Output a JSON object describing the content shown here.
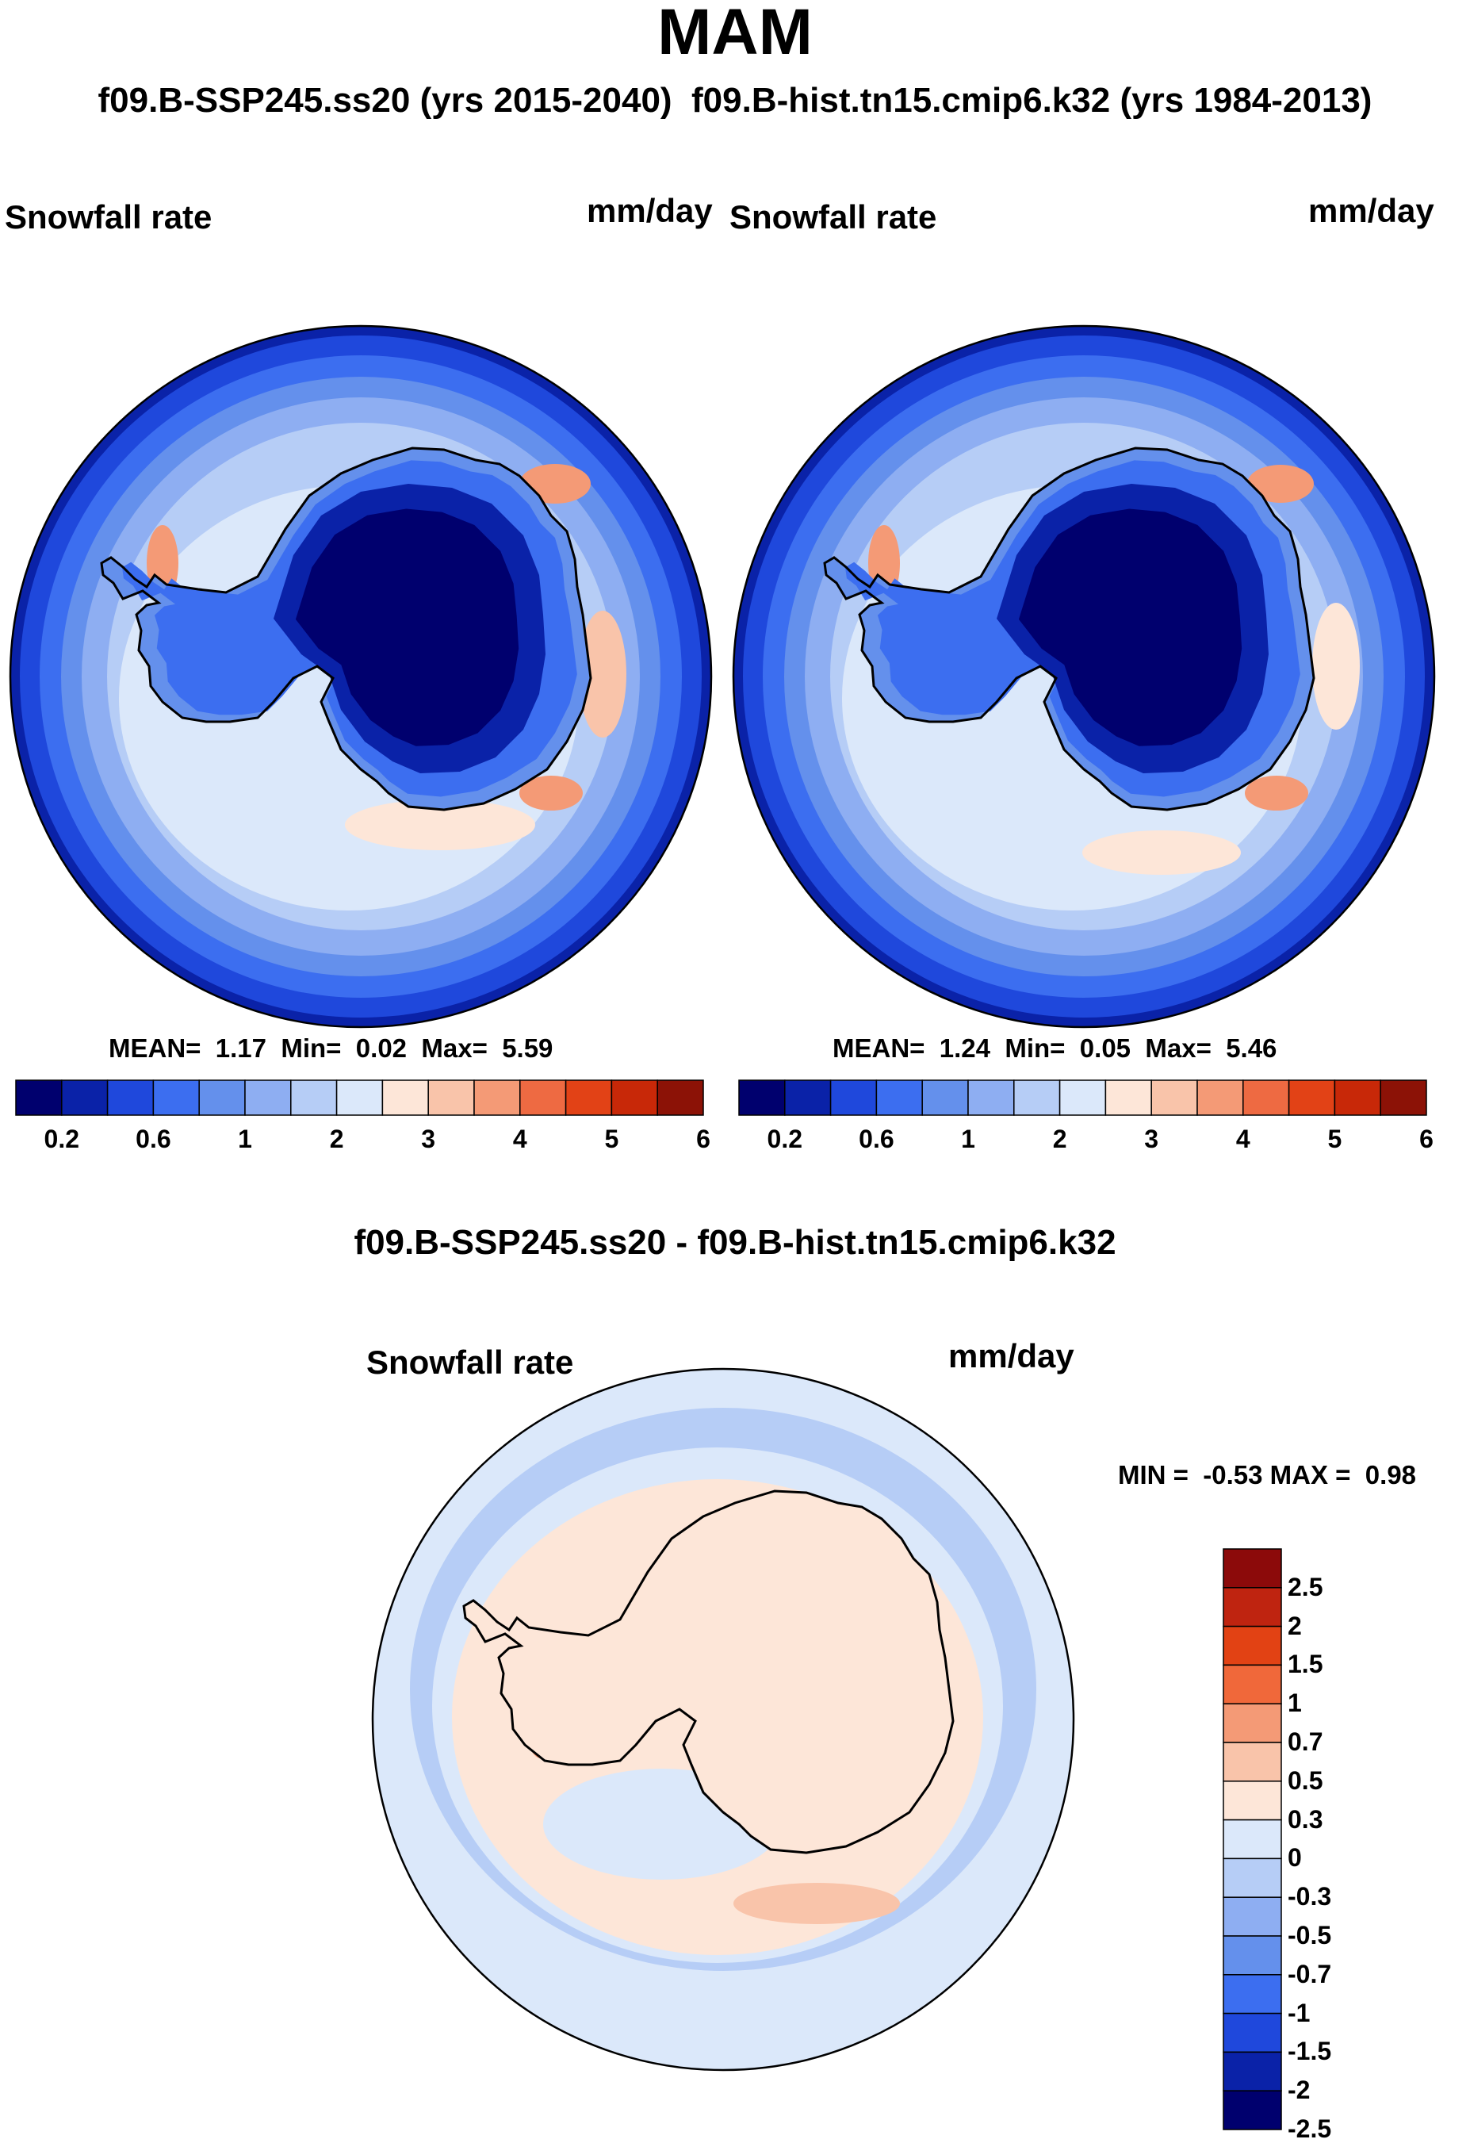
{
  "figure": {
    "title": "MAM",
    "subtitle": "f09.B-SSP245.ss20 (yrs 2015-2040)  f09.B-hist.tn15.cmip6.k32 (yrs 1984-2013)",
    "diff_title": "f09.B-SSP245.ss20 - f09.B-hist.tn15.cmip6.k32"
  },
  "panels": [
    {
      "id": "ssp245",
      "variable_label": "Snowfall rate",
      "units_label": "mm/day",
      "stats": {
        "mean_label": "MEAN=",
        "mean": "1.17",
        "min_label": "Min=",
        "min": "0.02",
        "max_label": "Max=",
        "max": "5.59"
      }
    },
    {
      "id": "hist",
      "variable_label": "Snowfall rate",
      "units_label": "mm/day",
      "stats": {
        "mean_label": "MEAN=",
        "mean": "1.24",
        "min_label": "Min=",
        "min": "0.05",
        "max_label": "Max=",
        "max": "5.46"
      }
    },
    {
      "id": "diff",
      "variable_label": "Snowfall rate",
      "units_label": "mm/day",
      "stats": {
        "min_label": "MIN =",
        "min": "-0.53",
        "max_label": "MAX =",
        "max": "0.98"
      }
    }
  ],
  "colorbars": {
    "absolute": {
      "ticks": [
        "0.2",
        "0.6",
        "1",
        "2",
        "3",
        "4",
        "5",
        "6"
      ],
      "colors": [
        "#00006e",
        "#0a22a8",
        "#1f48dc",
        "#3c6ef0",
        "#6490ec",
        "#8eaef2",
        "#b6cdf6",
        "#dbe8fa",
        "#fde6d8",
        "#f9c4aa",
        "#f49a76",
        "#ee6a42",
        "#e24216",
        "#c82808",
        "#8c1206"
      ]
    },
    "difference": {
      "ticks": [
        "2.5",
        "2",
        "1.5",
        "1",
        "0.7",
        "0.5",
        "0.3",
        "0",
        "-0.3",
        "-0.5",
        "-0.7",
        "-1",
        "-1.5",
        "-2",
        "-2.5"
      ],
      "colors": [
        "#8c0a0a",
        "#bf2410",
        "#e24214",
        "#f0683a",
        "#f49a76",
        "#f9c4aa",
        "#fde6d8",
        "#dbe8fa",
        "#b6cdf6",
        "#8eaef2",
        "#6490ec",
        "#3c6ef0",
        "#1f48dc",
        "#0a22a8",
        "#00006e"
      ]
    }
  },
  "chart_data": [
    {
      "type": "heatmap",
      "title": "Snowfall rate",
      "subtitle": "f09.B-SSP245.ss20 (yrs 2015-2040)",
      "units": "mm/day",
      "projection": "south polar stereographic",
      "mean": 1.17,
      "min": 0.02,
      "max": 5.59,
      "contour_levels": [
        0.2,
        0.4,
        0.6,
        0.8,
        1,
        1.5,
        2,
        2.5,
        3,
        3.5,
        4,
        4.5,
        5,
        5.5,
        6
      ]
    },
    {
      "type": "heatmap",
      "title": "Snowfall rate",
      "subtitle": "f09.B-hist.tn15.cmip6.k32 (yrs 1984-2013)",
      "units": "mm/day",
      "projection": "south polar stereographic",
      "mean": 1.24,
      "min": 0.05,
      "max": 5.46,
      "contour_levels": [
        0.2,
        0.4,
        0.6,
        0.8,
        1,
        1.5,
        2,
        2.5,
        3,
        3.5,
        4,
        4.5,
        5,
        5.5,
        6
      ]
    },
    {
      "type": "heatmap",
      "title": "Snowfall rate",
      "subtitle": "f09.B-SSP245.ss20 - f09.B-hist.tn15.cmip6.k32",
      "units": "mm/day",
      "projection": "south polar stereographic",
      "min": -0.53,
      "max": 0.98,
      "contour_levels": [
        -2.5,
        -2,
        -1.5,
        -1,
        -0.7,
        -0.5,
        -0.3,
        0,
        0.3,
        0.5,
        0.7,
        1,
        1.5,
        2,
        2.5
      ]
    }
  ]
}
